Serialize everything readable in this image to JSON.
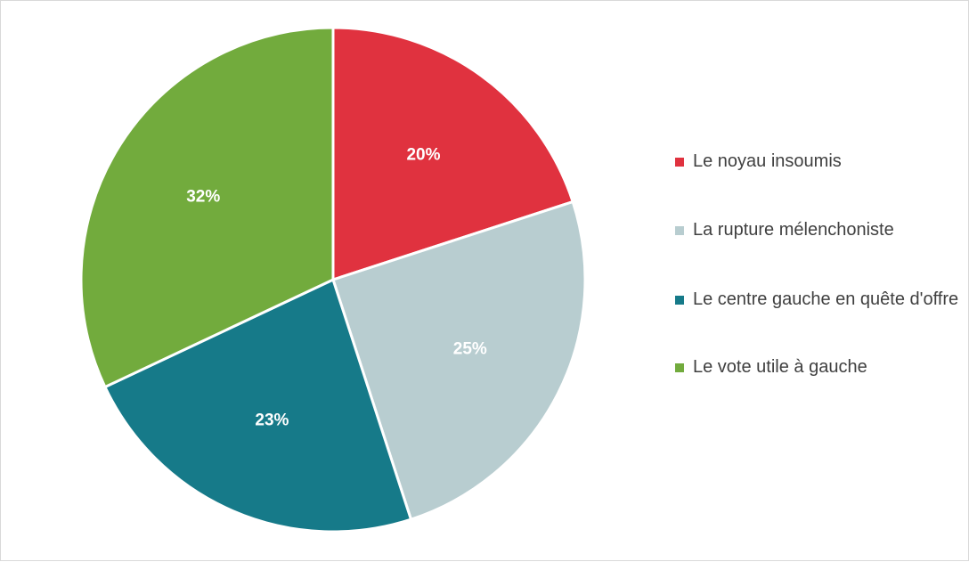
{
  "chart_data": {
    "type": "pie",
    "categories": [
      "Le noyau insoumis",
      "La rupture mélenchoniste",
      "Le centre gauche en quête d'offre",
      "Le vote utile à gauche"
    ],
    "values": [
      20,
      25,
      23,
      32
    ],
    "value_labels": [
      "20%",
      "25%",
      "23%",
      "32%"
    ],
    "colors": [
      "#e0323f",
      "#b8cdd0",
      "#167a89",
      "#72ab3d"
    ],
    "label_colors": [
      "#ffffff",
      "#ffffff",
      "#ffffff",
      "#ffffff"
    ],
    "legend": "right"
  }
}
